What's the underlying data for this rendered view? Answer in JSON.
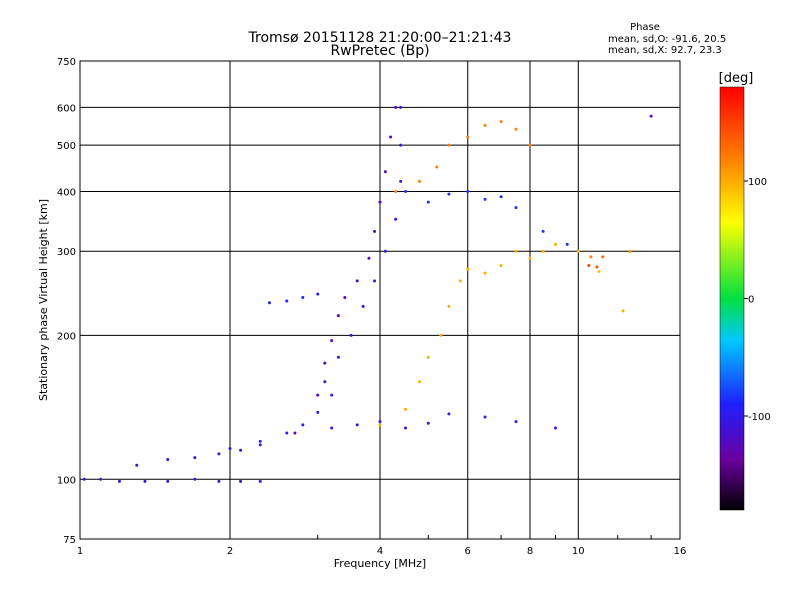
{
  "chart_data": {
    "type": "scatter",
    "title_line1": "Tromsø 20151128 21:20:00–21:21:43",
    "title_line2": "RwPretec (Bp)",
    "xlabel": "Frequency [MHz]",
    "ylabel": "Stationary phase Virtual Height [km]",
    "x_scale": "log",
    "y_scale": "log",
    "xlim": [
      1,
      16
    ],
    "ylim": [
      75,
      750
    ],
    "x_ticks": [
      1,
      2,
      4,
      6,
      8,
      10,
      16
    ],
    "x_tick_labels": [
      "1",
      "2",
      "4",
      "6",
      "8",
      "10",
      "16"
    ],
    "y_ticks": [
      75,
      100,
      200,
      300,
      400,
      500,
      600,
      750
    ],
    "y_tick_labels": [
      "75",
      "100",
      "200",
      "300",
      "400",
      "500",
      "600",
      "750"
    ],
    "grid": true,
    "phase_stats": {
      "title": "Phase",
      "line_o": "mean, sd,O: -91.6, 20.5",
      "line_x": "mean, sd,X:  92.7, 23.3"
    },
    "colorbar": {
      "label": "[deg]",
      "range": [
        -180,
        180
      ],
      "ticks": [
        100,
        0,
        -100
      ],
      "tick_labels": [
        "100",
        "0",
        "-100"
      ]
    },
    "traces": [
      {
        "name": "o-low",
        "phase": -100,
        "points": [
          [
            1.02,
            100
          ],
          [
            1.1,
            100
          ],
          [
            1.2,
            99
          ],
          [
            1.35,
            99
          ],
          [
            1.5,
            99
          ],
          [
            1.7,
            100
          ],
          [
            1.9,
            99
          ],
          [
            2.1,
            99
          ],
          [
            2.3,
            99
          ]
        ]
      },
      {
        "name": "o-low2",
        "phase": -110,
        "points": [
          [
            1.3,
            107
          ],
          [
            1.5,
            110
          ],
          [
            1.7,
            111
          ],
          [
            1.9,
            113
          ],
          [
            2.1,
            115
          ],
          [
            2.3,
            118
          ]
        ]
      },
      {
        "name": "o-rise",
        "phase": -95,
        "points": [
          [
            2.0,
            116
          ],
          [
            2.3,
            120
          ],
          [
            2.6,
            125
          ],
          [
            2.8,
            130
          ],
          [
            3.0,
            138
          ],
          [
            3.2,
            150
          ]
        ]
      },
      {
        "name": "o-mid",
        "phase": -120,
        "points": [
          [
            2.7,
            125
          ],
          [
            3.0,
            150
          ],
          [
            3.1,
            175
          ],
          [
            3.2,
            195
          ],
          [
            3.3,
            220
          ],
          [
            3.4,
            240
          ],
          [
            3.6,
            260
          ],
          [
            3.8,
            290
          ],
          [
            3.9,
            330
          ],
          [
            4.0,
            380
          ],
          [
            4.1,
            440
          ],
          [
            4.2,
            520
          ],
          [
            4.3,
            600
          ]
        ]
      },
      {
        "name": "o-mid2",
        "phase": -105,
        "points": [
          [
            3.1,
            160
          ],
          [
            3.3,
            180
          ],
          [
            3.5,
            200
          ],
          [
            3.7,
            230
          ],
          [
            3.9,
            260
          ],
          [
            4.1,
            300
          ],
          [
            4.3,
            350
          ],
          [
            4.4,
            420
          ],
          [
            4.4,
            500
          ],
          [
            4.4,
            600
          ]
        ]
      },
      {
        "name": "o-ledge",
        "phase": -90,
        "points": [
          [
            2.4,
            234
          ],
          [
            2.6,
            236
          ],
          [
            2.8,
            240
          ],
          [
            3.0,
            244
          ]
        ]
      },
      {
        "name": "o-fband",
        "phase": -100,
        "points": [
          [
            3.2,
            128
          ],
          [
            3.6,
            130
          ],
          [
            4.0,
            132
          ],
          [
            4.5,
            128
          ],
          [
            5.0,
            131
          ],
          [
            5.5,
            137
          ],
          [
            6.5,
            135
          ],
          [
            7.5,
            132
          ],
          [
            9.0,
            128
          ]
        ]
      },
      {
        "name": "x-band",
        "phase": 100,
        "points": [
          [
            4.0,
            130
          ],
          [
            4.5,
            140
          ],
          [
            4.8,
            160
          ],
          [
            5.0,
            180
          ],
          [
            5.3,
            200
          ],
          [
            5.5,
            230
          ],
          [
            5.8,
            260
          ],
          [
            6.0,
            275
          ],
          [
            6.5,
            270
          ],
          [
            7.0,
            280
          ],
          [
            7.5,
            300
          ],
          [
            8.0,
            290
          ],
          [
            8.5,
            300
          ],
          [
            9.0,
            310
          ],
          [
            10.0,
            300
          ]
        ]
      },
      {
        "name": "x-upper",
        "phase": 120,
        "points": [
          [
            4.3,
            400
          ],
          [
            4.8,
            420
          ],
          [
            5.2,
            450
          ],
          [
            5.5,
            500
          ],
          [
            6.0,
            520
          ],
          [
            6.5,
            550
          ],
          [
            7.0,
            560
          ],
          [
            7.5,
            540
          ],
          [
            8.0,
            500
          ]
        ]
      },
      {
        "name": "o-upper",
        "phase": -85,
        "points": [
          [
            4.5,
            400
          ],
          [
            5.0,
            380
          ],
          [
            5.5,
            395
          ],
          [
            6.0,
            400
          ],
          [
            6.5,
            385
          ],
          [
            7.0,
            390
          ],
          [
            7.5,
            370
          ],
          [
            8.5,
            330
          ],
          [
            9.5,
            310
          ]
        ]
      }
    ],
    "extra_points": [
      {
        "f": 14.0,
        "h": 575,
        "phase": -120
      },
      {
        "f": 12.7,
        "h": 300,
        "phase": 110
      },
      {
        "f": 12.3,
        "h": 225,
        "phase": 100
      },
      {
        "f": 10.6,
        "h": 292,
        "phase": 120
      },
      {
        "f": 10.9,
        "h": 278,
        "phase": 140
      },
      {
        "f": 11.2,
        "h": 292,
        "phase": 130
      },
      {
        "f": 10.5,
        "h": 280,
        "phase": 150
      },
      {
        "f": 11.0,
        "h": 272,
        "phase": 90
      }
    ]
  }
}
